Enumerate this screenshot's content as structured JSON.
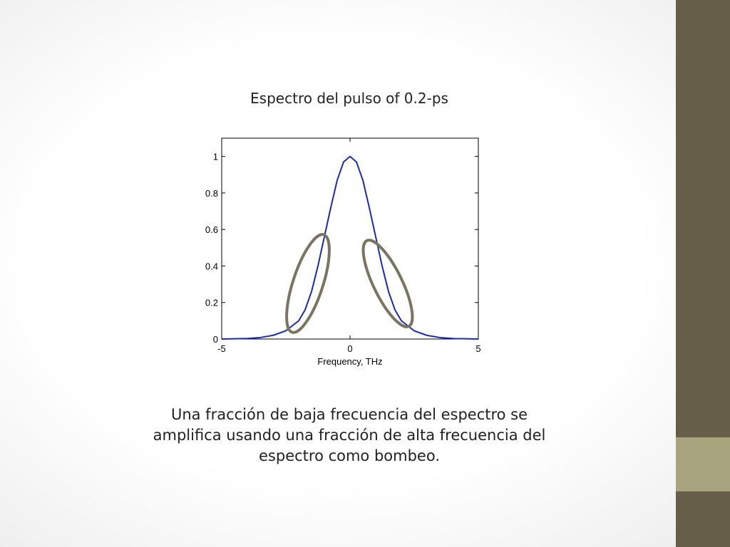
{
  "chart_data": {
    "type": "line",
    "title": "Espectro del pulso of 0.2-ps",
    "xlabel": "Frequency, THz",
    "x": [
      -5,
      -4,
      -3.5,
      -3,
      -2.5,
      -2,
      -1.75,
      -1.5,
      -1.25,
      -1,
      -0.75,
      -0.5,
      -0.25,
      0,
      0.25,
      0.5,
      0.75,
      1,
      1.25,
      1.5,
      1.75,
      2,
      2.5,
      3,
      3.5,
      4,
      5
    ],
    "values": [
      0,
      0.003,
      0.008,
      0.02,
      0.045,
      0.1,
      0.16,
      0.26,
      0.4,
      0.56,
      0.72,
      0.87,
      0.97,
      1,
      0.97,
      0.87,
      0.72,
      0.56,
      0.4,
      0.26,
      0.16,
      0.1,
      0.045,
      0.02,
      0.008,
      0.003,
      0
    ],
    "color": "#1a2bab",
    "xlim": [
      -5,
      5
    ],
    "xticks": [
      -5,
      0,
      5
    ],
    "ylim": [
      0,
      1.1
    ],
    "yticks": [
      0,
      0.2,
      0.4,
      0.6,
      0.8,
      1
    ]
  },
  "caption": [
    "Una fracción de baja frecuencia del espectro se",
    "amplifica usando una fracción de alta frecuencia del",
    "espectro como bombeo."
  ]
}
